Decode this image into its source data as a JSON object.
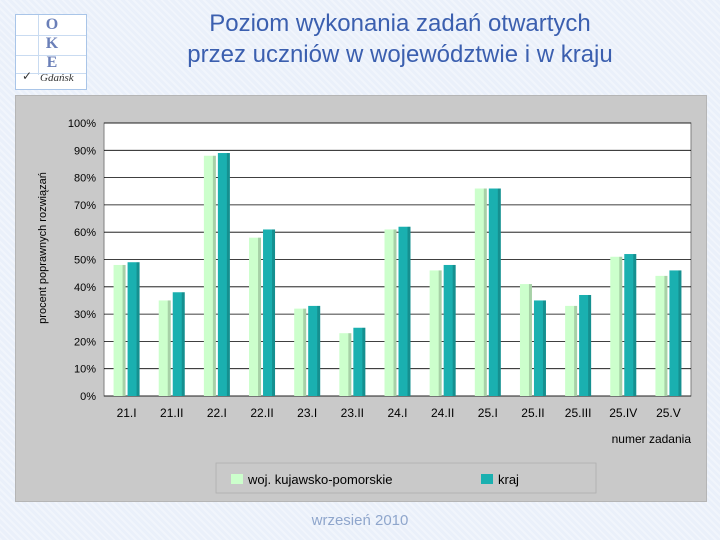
{
  "header": {
    "title_line1": "Poziom wykonania zadań otwartych",
    "title_line2": "przez uczniów w województwie i w kraju"
  },
  "logo": {
    "letters": [
      "O",
      "K",
      "E"
    ],
    "city": "Gdańsk",
    "check": "✓"
  },
  "footer": {
    "text": "wrzesień 2010"
  },
  "colors": {
    "woj": "#ccffcc",
    "kraj": "#1ab0b0",
    "title": "#3b5faf",
    "plot_bg": "#ffffff"
  },
  "chart_data": {
    "type": "bar",
    "title": "",
    "xlabel": "numer zadania",
    "ylabel": "procent poprawnych rozwiązań",
    "ylim": [
      0,
      100
    ],
    "yticks": [
      "0%",
      "10%",
      "20%",
      "30%",
      "40%",
      "50%",
      "60%",
      "70%",
      "80%",
      "90%",
      "100%"
    ],
    "grid": true,
    "legend_position": "bottom",
    "categories": [
      "21.I",
      "21.II",
      "22.I",
      "22.II",
      "23.I",
      "23.II",
      "24.I",
      "24.II",
      "25.I",
      "25.II",
      "25.III",
      "25.IV",
      "25.V"
    ],
    "series": [
      {
        "name": "woj. kujawsko-pomorskie",
        "values": [
          48,
          35,
          88,
          58,
          32,
          23,
          61,
          46,
          76,
          41,
          33,
          51,
          44
        ]
      },
      {
        "name": "kraj",
        "values": [
          49,
          38,
          89,
          61,
          33,
          25,
          62,
          48,
          76,
          35,
          37,
          52,
          46
        ]
      }
    ]
  }
}
